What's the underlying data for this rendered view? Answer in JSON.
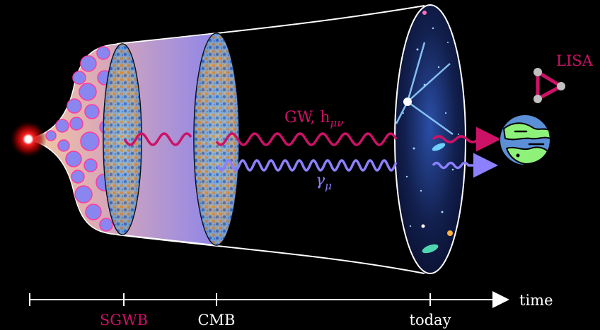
{
  "labels": {
    "lisa": "LISA",
    "gw": "GW, h",
    "gw_sub": "μν",
    "photon": "γ",
    "photon_sub": "μ"
  },
  "timeline": {
    "end_label": "time",
    "ticks": [
      "SGWB",
      "CMB",
      "today"
    ]
  },
  "colors": {
    "background": "#000000",
    "gw_wave": "#cc1266",
    "photon_wave": "#8c80ff",
    "lisa": "#cc1266",
    "big_bang": "#ff2a2a",
    "outline": "#ffffff"
  },
  "icons": {
    "source": "big-bang-glow-icon",
    "detector": "lisa-triangle-icon",
    "observer": "earth-planet-icon"
  }
}
